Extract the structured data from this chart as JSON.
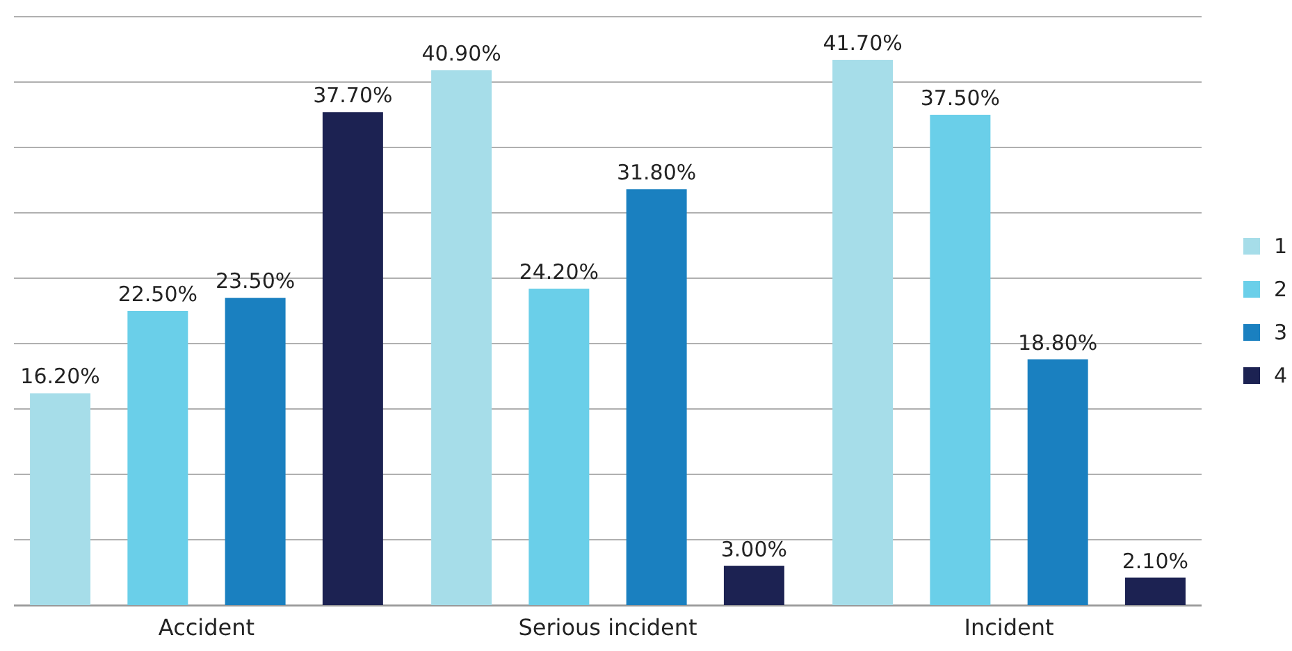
{
  "chart_data": {
    "type": "bar",
    "categories": [
      "Accident",
      "Serious incident",
      "Incident"
    ],
    "series": [
      {
        "name": "1",
        "color": "#a6dde9",
        "values": [
          16.2,
          40.9,
          41.7
        ],
        "value_labels": [
          "16.20%",
          "40.90%",
          "41.70%"
        ]
      },
      {
        "name": "2",
        "color": "#6acfe9",
        "values": [
          22.5,
          24.2,
          37.5
        ],
        "value_labels": [
          "22.50%",
          "24.20%",
          "37.50%"
        ]
      },
      {
        "name": "3",
        "color": "#1a80c0",
        "values": [
          23.5,
          31.8,
          18.8
        ],
        "value_labels": [
          "23.50%",
          "31.80%",
          "18.80%"
        ]
      },
      {
        "name": "4",
        "color": "#1c2252",
        "values": [
          37.7,
          3.0,
          2.1
        ],
        "value_labels": [
          "37.70%",
          "3.00%",
          "2.10%"
        ]
      }
    ],
    "ylim": [
      0,
      45
    ],
    "yticks": [
      {
        "value": 0,
        "label": null
      },
      {
        "value": 5,
        "label": null
      },
      {
        "value": 10,
        "label": null
      },
      {
        "value": 15,
        "label": null
      },
      {
        "value": 20,
        "label": null
      },
      {
        "value": 25,
        "label": null
      },
      {
        "value": 30,
        "label": null
      },
      {
        "value": 35,
        "label": null
      },
      {
        "value": 40,
        "label": null
      },
      {
        "value": 45,
        "label": null
      }
    ],
    "grid": "y",
    "legend": "right",
    "tick_labels": "x"
  }
}
